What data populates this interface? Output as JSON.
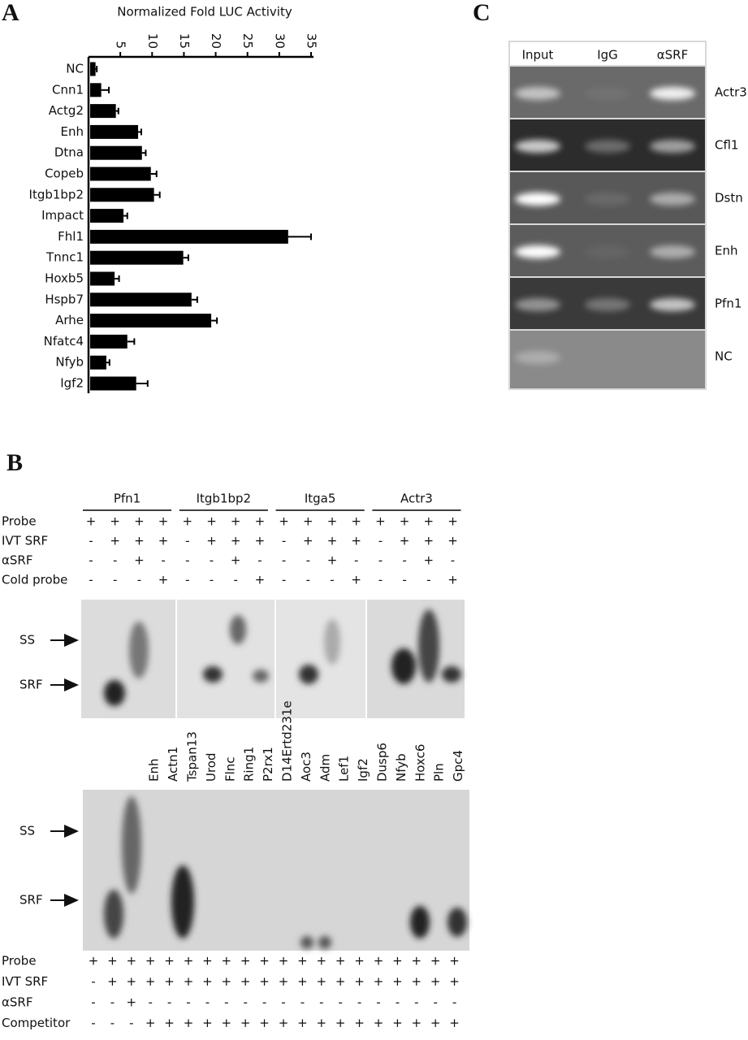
{
  "chart_data": {
    "type": "bar",
    "orientation": "horizontal",
    "panel_label": "A",
    "xlabel": "Normalized Fold LUC Activity",
    "categories": [
      "NC",
      "Cnn1",
      "Actg2",
      "Enh",
      "Dtna",
      "Copeb",
      "Itgb1bp2",
      "Impact",
      "Fhl1",
      "Tnnc1",
      "Hoxb5",
      "Hspb7",
      "Arhe",
      "Nfatc4",
      "Nfyb",
      "Igf2"
    ],
    "series": [
      {
        "color": "#000000",
        "values": [
          1.1,
          2.0,
          4.3,
          7.8,
          8.4,
          9.8,
          10.3,
          5.5,
          31.4,
          14.9,
          4.1,
          16.2,
          19.3,
          6.1,
          2.8,
          7.5
        ],
        "errors": [
          0.2,
          1.2,
          0.4,
          0.5,
          0.6,
          0.9,
          0.9,
          0.6,
          3.6,
          0.8,
          0.7,
          0.9,
          0.9,
          1.1,
          0.5,
          1.8
        ]
      }
    ],
    "xlim": [
      0,
      35
    ],
    "xticks": [
      5,
      10,
      15,
      20,
      25,
      30,
      35
    ]
  },
  "panel_c": {
    "label": "C",
    "columns": [
      "Input",
      "IgG",
      "αSRF"
    ],
    "rows": [
      "Actr3",
      "Cfl1",
      "Dstn",
      "Enh",
      "Pfn1",
      "NC"
    ]
  },
  "panel_b": {
    "label": "B",
    "top": {
      "groups": [
        "Pfn1",
        "Itgb1bp2",
        "Itga5",
        "Actr3"
      ],
      "rows": [
        {
          "name": "Probe",
          "cells": [
            "+",
            "+",
            "+",
            "+",
            "+",
            "+",
            "+",
            "+",
            "+",
            "+",
            "+",
            "+",
            "+",
            "+",
            "+",
            "+"
          ]
        },
        {
          "name": "IVT SRF",
          "cells": [
            "-",
            "+",
            "+",
            "+",
            "-",
            "+",
            "+",
            "+",
            "-",
            "+",
            "+",
            "+",
            "-",
            "+",
            "+",
            "+"
          ]
        },
        {
          "name": "αSRF",
          "cells": [
            "-",
            "-",
            "+",
            "-",
            "-",
            "-",
            "+",
            "-",
            "-",
            "-",
            "+",
            "-",
            "-",
            "-",
            "+",
            "-"
          ]
        },
        {
          "name": "Cold probe",
          "cells": [
            "-",
            "-",
            "-",
            "+",
            "-",
            "-",
            "-",
            "+",
            "-",
            "-",
            "-",
            "+",
            "-",
            "-",
            "-",
            "+"
          ]
        }
      ],
      "arrows": [
        "SS",
        "SRF"
      ]
    },
    "bottom": {
      "lanes": [
        "Enh",
        "Actn1",
        "Tspan13",
        "Urod",
        "Flnc",
        "Ring1",
        "P2rx1",
        "D14Ertd231e",
        "Aoc3",
        "Adm",
        "Lef1",
        "Igf2",
        "Dusp6",
        "Nfyb",
        "Hoxc6",
        "Pln",
        "Gpc4"
      ],
      "rows": [
        {
          "name": "Probe",
          "cells": [
            "+",
            "+",
            "+",
            "+",
            "+",
            "+",
            "+",
            "+",
            "+",
            "+",
            "+",
            "+",
            "+",
            "+",
            "+",
            "+",
            "+",
            "+",
            "+",
            "+"
          ]
        },
        {
          "name": "IVT SRF",
          "cells": [
            "-",
            "+",
            "+",
            "+",
            "+",
            "+",
            "+",
            "+",
            "+",
            "+",
            "+",
            "+",
            "+",
            "+",
            "+",
            "+",
            "+",
            "+",
            "+",
            "+"
          ]
        },
        {
          "name": "αSRF",
          "cells": [
            "-",
            "-",
            "+",
            "-",
            "-",
            "-",
            "-",
            "-",
            "-",
            "-",
            "-",
            "-",
            "-",
            "-",
            "-",
            "-",
            "-",
            "-",
            "-",
            "-"
          ]
        },
        {
          "name": "Competitor",
          "cells": [
            "-",
            "-",
            "-",
            "+",
            "+",
            "+",
            "+",
            "+",
            "+",
            "+",
            "+",
            "+",
            "+",
            "+",
            "+",
            "+",
            "+",
            "+",
            "+",
            "+"
          ]
        }
      ],
      "arrows": [
        "SS",
        "SRF"
      ]
    }
  }
}
